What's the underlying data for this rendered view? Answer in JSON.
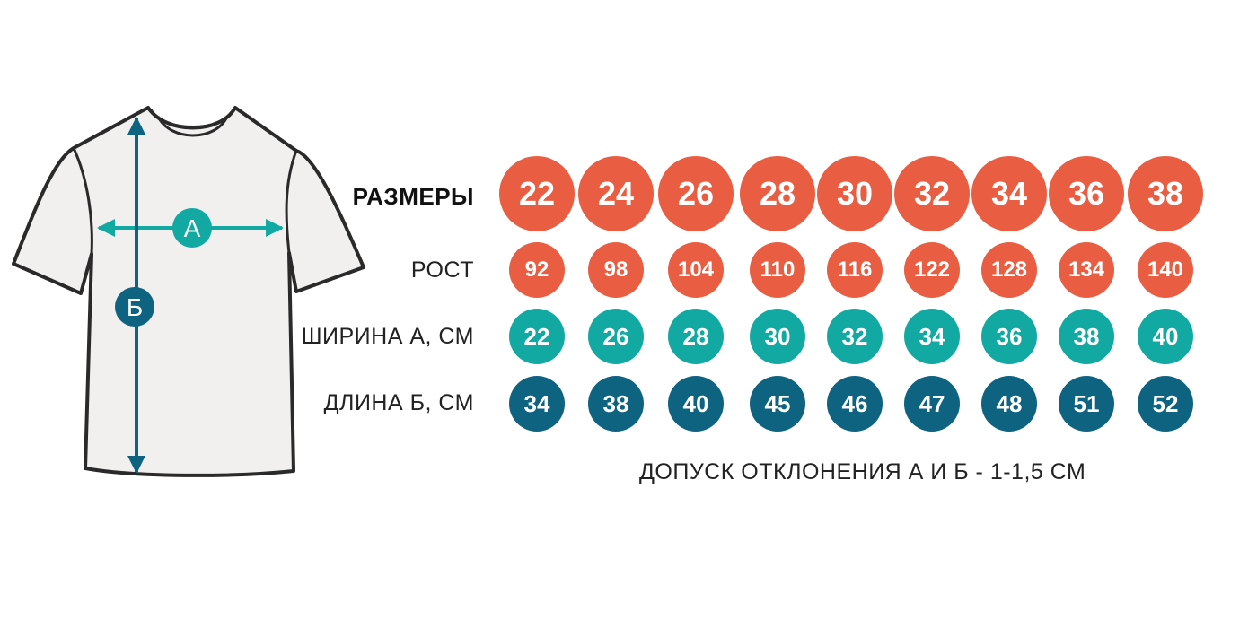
{
  "diagram": {
    "label_a": "А",
    "label_b": "Б",
    "colors": {
      "size": "#e95e43",
      "height": "#e95e43",
      "width": "#12a9a2",
      "length": "#0e6381"
    }
  },
  "table": {
    "labels": {
      "sizes": "РАЗМЕРЫ",
      "height": "РОСТ",
      "width": "ШИРИНА А, СМ",
      "length": "ДЛИНА Б, СМ"
    },
    "sizes": [
      "22",
      "24",
      "26",
      "28",
      "30",
      "32",
      "34",
      "36",
      "38"
    ],
    "height": [
      "92",
      "98",
      "104",
      "110",
      "116",
      "122",
      "128",
      "134",
      "140"
    ],
    "width": [
      "22",
      "26",
      "28",
      "30",
      "32",
      "34",
      "36",
      "38",
      "40"
    ],
    "length": [
      "34",
      "38",
      "40",
      "45",
      "46",
      "47",
      "48",
      "51",
      "52"
    ]
  },
  "note": "ДОПУСК ОТКЛОНЕНИЯ А И Б - 1-1,5 СМ"
}
